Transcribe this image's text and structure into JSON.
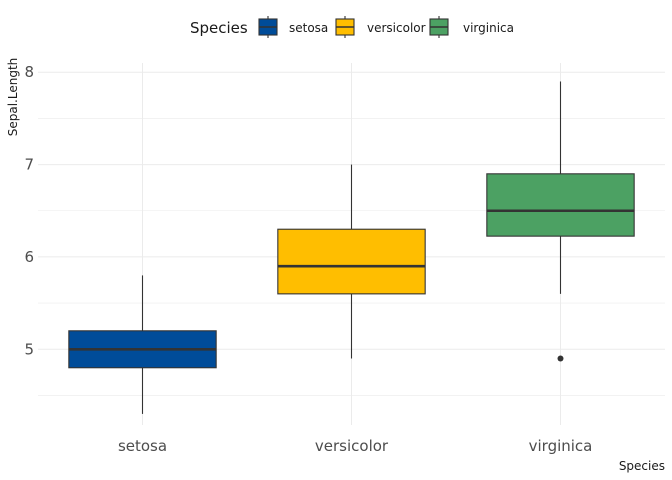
{
  "chart_data": {
    "type": "box",
    "xlabel": "Species",
    "ylabel": "Sepal.Length",
    "ylim": [
      4.18,
      8.1
    ],
    "y_ticks": [
      5,
      6,
      7,
      8
    ],
    "categories": [
      "setosa",
      "versicolor",
      "virginica"
    ],
    "legend": {
      "title": "Species",
      "position": "top"
    },
    "grid": true,
    "series": [
      {
        "name": "setosa",
        "color": "#004C99",
        "min": 4.3,
        "q1": 4.8,
        "median": 5.0,
        "q3": 5.2,
        "max": 5.8,
        "outliers": []
      },
      {
        "name": "versicolor",
        "color": "#FFBE00",
        "min": 4.9,
        "q1": 5.6,
        "median": 5.9,
        "q3": 6.3,
        "max": 7.0,
        "outliers": []
      },
      {
        "name": "virginica",
        "color": "#4CA163",
        "min": 5.6,
        "q1": 6.225,
        "median": 6.5,
        "q3": 6.9,
        "max": 7.9,
        "outliers": [
          4.9
        ]
      }
    ]
  }
}
